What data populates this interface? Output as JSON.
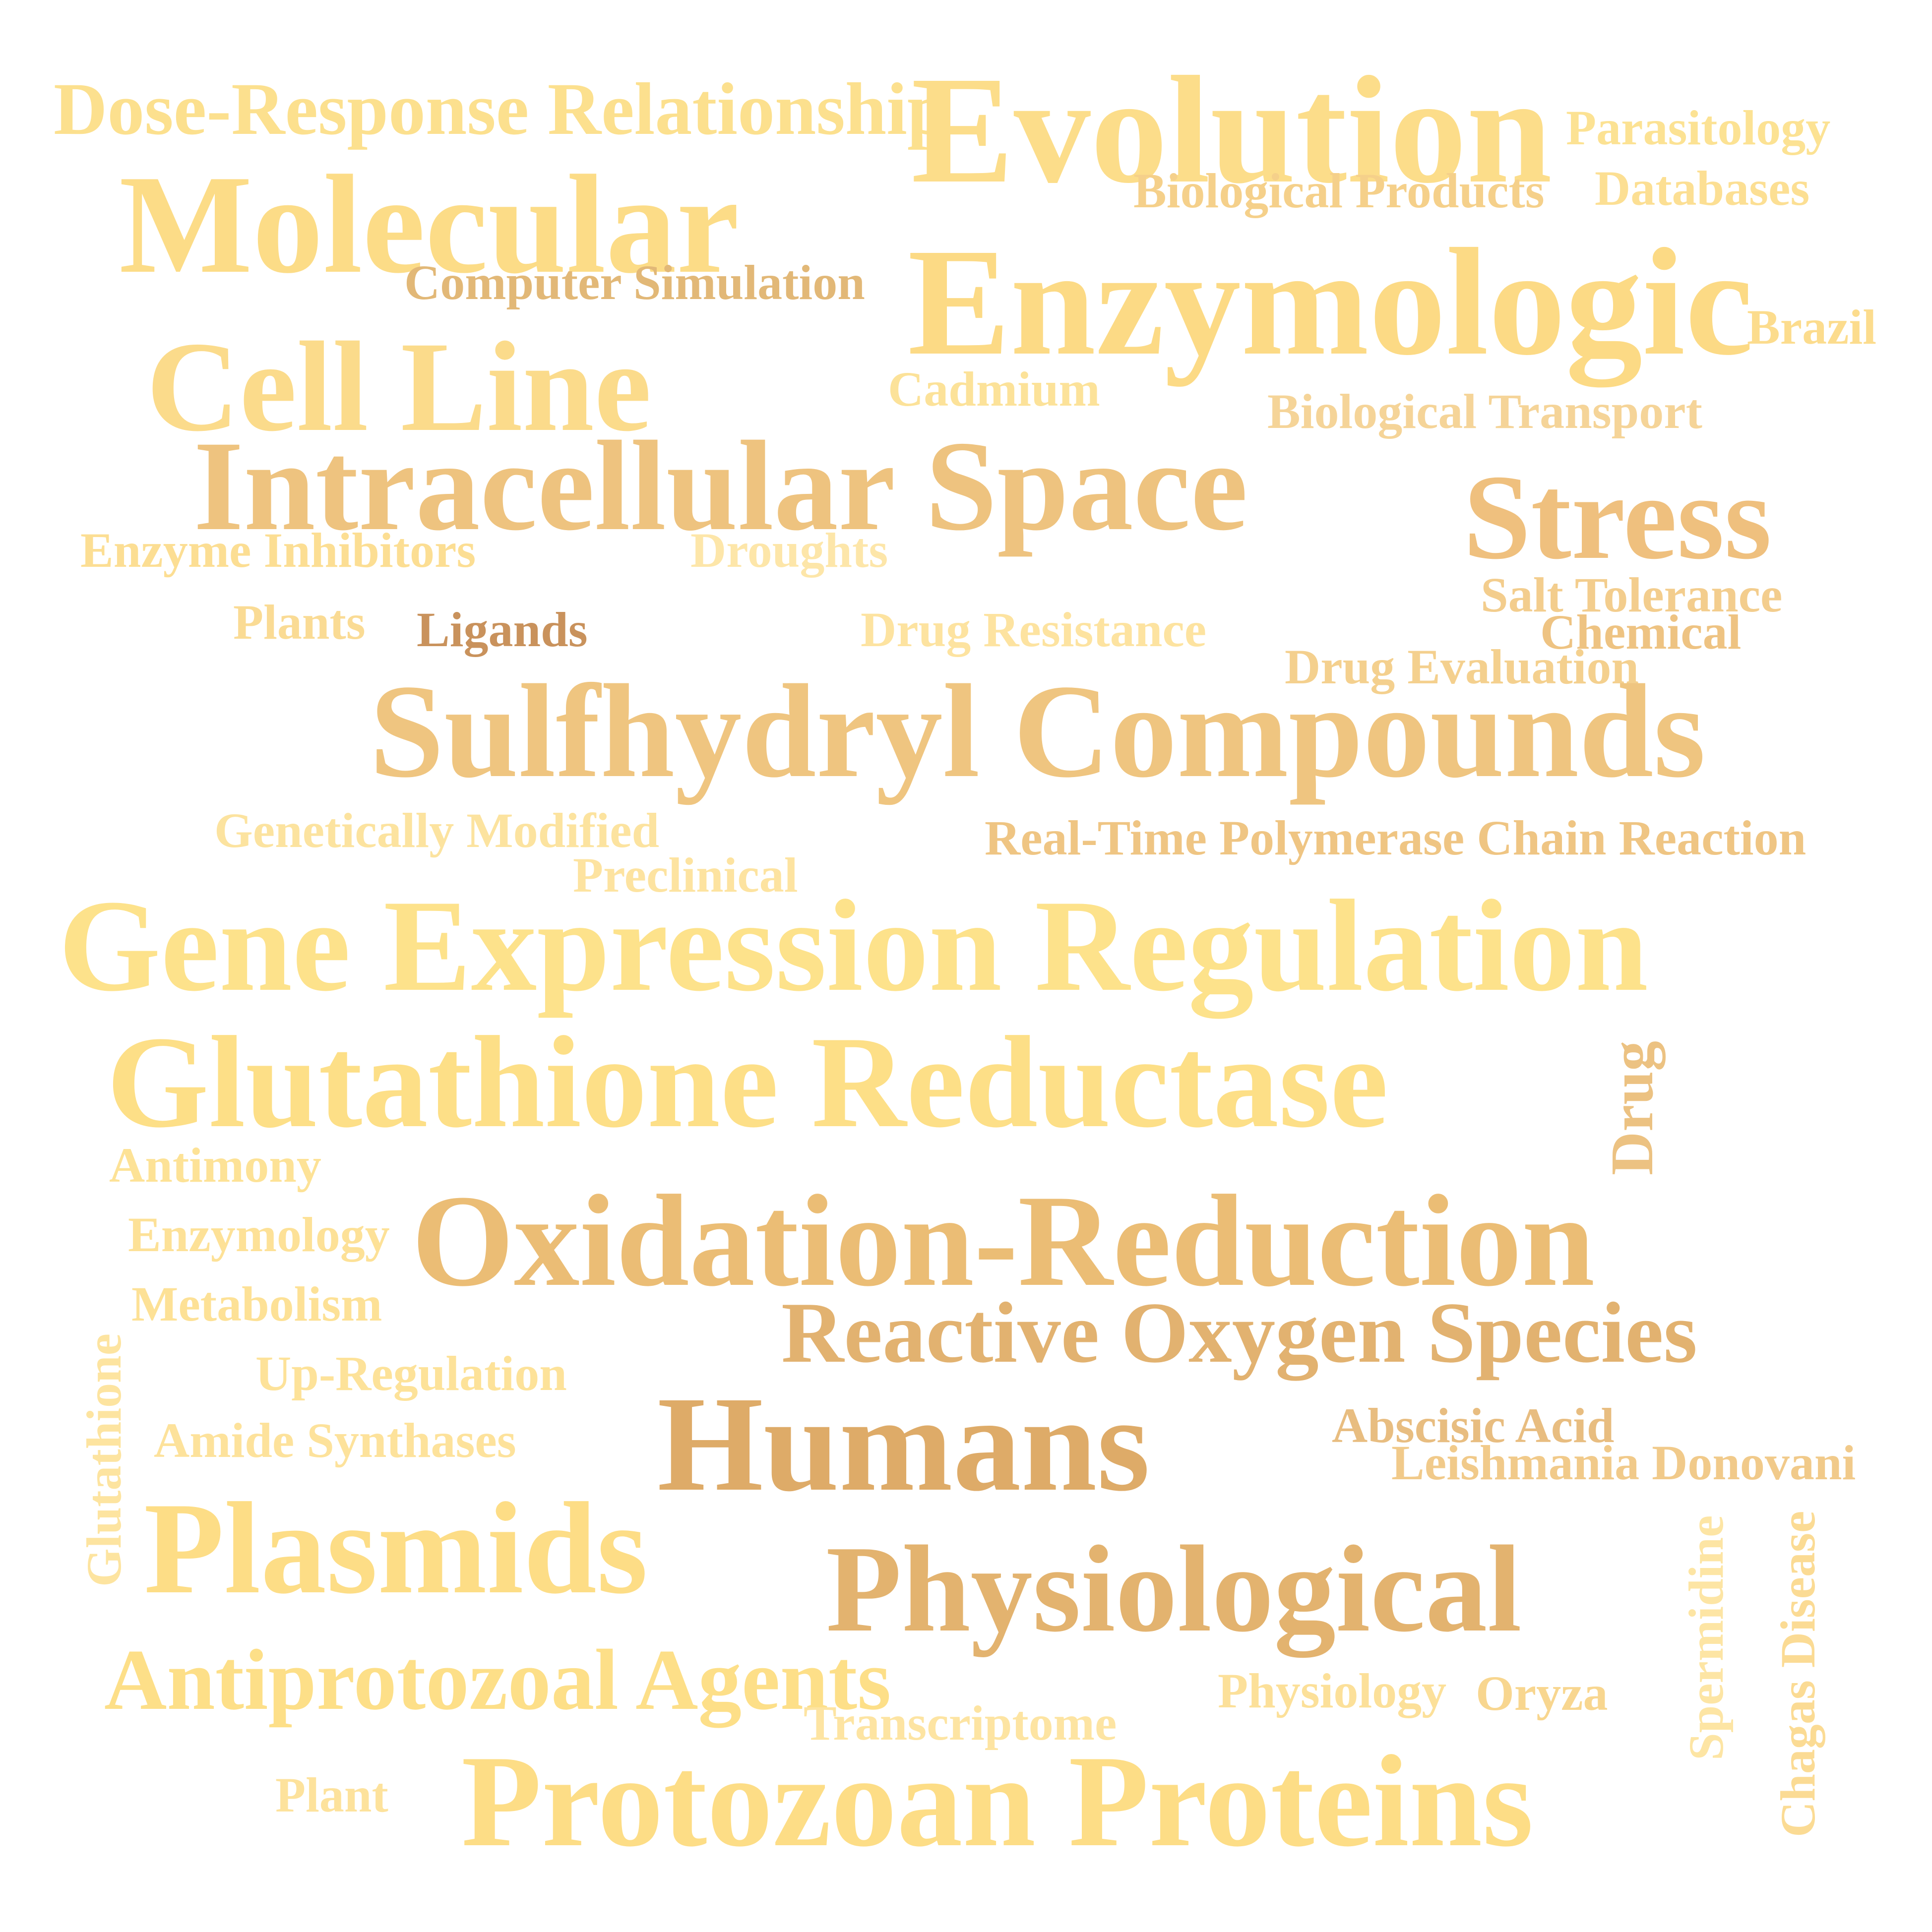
{
  "words": [
    {
      "text": "Dose-Response Relationship",
      "color": "#fce08e"
    },
    {
      "text": "Evolution",
      "color": "#fcdd8a"
    },
    {
      "text": "Parasitology",
      "color": "#fce293"
    },
    {
      "text": "Molecular",
      "color": "#fcdc87"
    },
    {
      "text": "Biological Products",
      "color": "#f5d08a"
    },
    {
      "text": "Databases",
      "color": "#fcdf93"
    },
    {
      "text": "Computer Simulation",
      "color": "#e2b877"
    },
    {
      "text": "Enzymologic",
      "color": "#fcda85"
    },
    {
      "text": "Brazil",
      "color": "#fcdc8d"
    },
    {
      "text": "Cell Line",
      "color": "#fbdb8b"
    },
    {
      "text": "Cadmium",
      "color": "#fce299"
    },
    {
      "text": "Biological Transport",
      "color": "#f5d498"
    },
    {
      "text": "Intracellular Space",
      "color": "#eec37f"
    },
    {
      "text": "Stress",
      "color": "#efc07e"
    },
    {
      "text": "Enzyme Inhibitors",
      "color": "#fcde93"
    },
    {
      "text": "Droughts",
      "color": "#fde6a9"
    },
    {
      "text": "Salt Tolerance",
      "color": "#f3cd8d"
    },
    {
      "text": "Plants",
      "color": "#fadb94"
    },
    {
      "text": "Ligands",
      "color": "#c9925c"
    },
    {
      "text": "Drug Resistance",
      "color": "#fde3a0"
    },
    {
      "text": "Chemical",
      "color": "#eec382"
    },
    {
      "text": "Drug Evaluation",
      "color": "#f4d08e"
    },
    {
      "text": "Sulfhydryl Compounds",
      "color": "#efc580"
    },
    {
      "text": "Genetically Modified",
      "color": "#fce39f"
    },
    {
      "text": "Real-Time Polymerase Chain Reaction",
      "color": "#efc583"
    },
    {
      "text": "Preclinical",
      "color": "#fde3a0"
    },
    {
      "text": "Gene Expression Regulation",
      "color": "#fde28b"
    },
    {
      "text": "Glutathione Reductase",
      "color": "#fddf87"
    },
    {
      "text": "Drug",
      "color": "#ecc282"
    },
    {
      "text": "Antimony",
      "color": "#fde296"
    },
    {
      "text": "Oxidation-Reduction",
      "color": "#ebbd75"
    },
    {
      "text": "Enzymology",
      "color": "#fde197"
    },
    {
      "text": "Metabolism",
      "color": "#fde196"
    },
    {
      "text": "Glutathione",
      "color": "#fde4a0"
    },
    {
      "text": "Up-Regulation",
      "color": "#fde299"
    },
    {
      "text": "Reactive Oxygen Species",
      "color": "#e2b270"
    },
    {
      "text": "Abscisic Acid",
      "color": "#e8bd80"
    },
    {
      "text": "Humans",
      "color": "#deab68"
    },
    {
      "text": "Amide Synthases",
      "color": "#fde29b"
    },
    {
      "text": "Leishmania Donovani",
      "color": "#f1ca8a"
    },
    {
      "text": "Plasmids",
      "color": "#fddd86"
    },
    {
      "text": "Spermidine",
      "color": "#fde5a4"
    },
    {
      "text": "Chagas Disease",
      "color": "#fbdb94"
    },
    {
      "text": "Physiological",
      "color": "#e3b36f"
    },
    {
      "text": "Antiprotozoal Agents",
      "color": "#fddf88"
    },
    {
      "text": "Physiology",
      "color": "#fce099"
    },
    {
      "text": "Oryza",
      "color": "#f8d68f"
    },
    {
      "text": "Transcriptome",
      "color": "#fde4a2"
    },
    {
      "text": "Plant",
      "color": "#fde29c"
    },
    {
      "text": "Protozoan Proteins",
      "color": "#fddd86"
    }
  ]
}
